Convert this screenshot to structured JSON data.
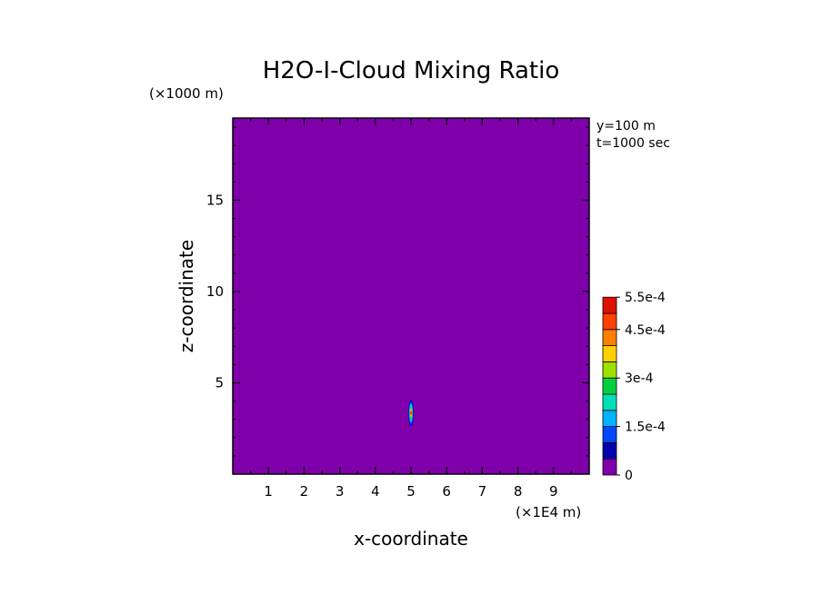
{
  "chart_data": {
    "type": "heatmap",
    "title": "H2O-I-Cloud Mixing Ratio",
    "xlabel": "x-coordinate",
    "ylabel": "z-coordinate",
    "x_unit": "(×1E4 m)",
    "y_unit": "(×1000 m)",
    "info": [
      "y=100 m",
      "t=1000 sec"
    ],
    "xlim": [
      0,
      10
    ],
    "ylim": [
      0,
      19.5
    ],
    "x_ticks": [
      1,
      2,
      3,
      4,
      5,
      6,
      7,
      8,
      9
    ],
    "y_ticks": [
      5,
      10,
      15
    ],
    "background_color": "#7f00aa",
    "feature": {
      "center_x": 5.0,
      "center_z": 3.35,
      "contours": [
        {
          "level": 5e-05,
          "rx": 0.07,
          "rz": 0.72,
          "color": "#0000b0"
        },
        {
          "level": 0.0001,
          "rx": 0.06,
          "rz": 0.62,
          "color": "#0048ff"
        },
        {
          "level": 0.00015,
          "rx": 0.05,
          "rz": 0.52,
          "color": "#00b4ff"
        },
        {
          "level": 0.0002,
          "rx": 0.04,
          "rz": 0.42,
          "color": "#00e0b8"
        },
        {
          "level": 0.00025,
          "rx": 0.035,
          "rz": 0.34,
          "color": "#00d040"
        },
        {
          "level": 0.0003,
          "rx": 0.028,
          "rz": 0.27,
          "color": "#a0e000"
        },
        {
          "level": 0.00035,
          "rx": 0.022,
          "rz": 0.21,
          "color": "#ffd000"
        },
        {
          "level": 0.0004,
          "rx": 0.017,
          "rz": 0.15,
          "color": "#ff8000"
        },
        {
          "level": 0.00045,
          "rx": 0.012,
          "rz": 0.09,
          "color": "#ff4000"
        }
      ]
    },
    "colorbar": {
      "colors": [
        "#7f00aa",
        "#0000b0",
        "#0048ff",
        "#00b4ff",
        "#00e0b8",
        "#00d040",
        "#a0e000",
        "#ffd000",
        "#ff8000",
        "#ff4000",
        "#e01000"
      ],
      "labels": [
        {
          "text": "0",
          "index": 0
        },
        {
          "text": "1.5e-4",
          "index": 3
        },
        {
          "text": "3e-4",
          "index": 6
        },
        {
          "text": "4.5e-4",
          "index": 9
        },
        {
          "text": "5.5e-4",
          "index": 11
        }
      ]
    }
  }
}
